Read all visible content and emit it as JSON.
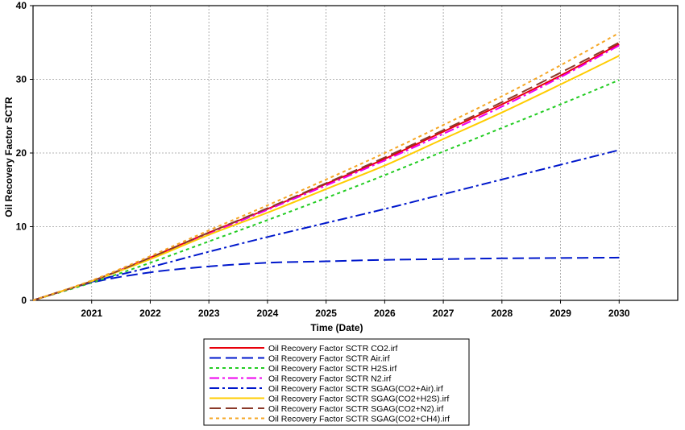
{
  "chart_data": {
    "type": "line",
    "title": "",
    "xlabel": "Time (Date)",
    "ylabel": "Oil Recovery Factor SCTR",
    "xlim": [
      2020,
      2031
    ],
    "ylim": [
      0,
      40
    ],
    "x_ticks": [
      "2021",
      "2022",
      "2023",
      "2024",
      "2025",
      "2026",
      "2027",
      "2028",
      "2029",
      "2030"
    ],
    "y_ticks": [
      "0",
      "10",
      "20",
      "30",
      "40"
    ],
    "grid": true,
    "legend_position": "bottom-center",
    "x": [
      2020.0,
      2021.0,
      2022.0,
      2023.0,
      2024.0,
      2025.0,
      2026.0,
      2027.0,
      2028.0,
      2029.0,
      2030.0
    ],
    "series": [
      {
        "name": "Oil Recovery Factor SCTR CO2.irf",
        "color": "#e8000b",
        "dash": "solid",
        "values": [
          0,
          2.6,
          5.8,
          9.2,
          12.4,
          15.8,
          19.2,
          22.9,
          26.6,
          30.5,
          34.8
        ]
      },
      {
        "name": "Oil Recovery Factor SCTR Air.irf",
        "color": "#0018cc",
        "dash": "long-dash",
        "values": [
          0,
          2.4,
          3.8,
          4.6,
          5.1,
          5.3,
          5.5,
          5.6,
          5.7,
          5.75,
          5.8
        ]
      },
      {
        "name": "Oil Recovery Factor SCTR H2S.irf",
        "color": "#22cc22",
        "dash": "dot",
        "values": [
          0,
          2.4,
          5.1,
          8.0,
          10.9,
          13.9,
          17.0,
          20.2,
          23.4,
          26.6,
          29.9
        ]
      },
      {
        "name": "Oil Recovery Factor SCTR N2.irf",
        "color": "#ee00ee",
        "dash": "dash-dot",
        "values": [
          0,
          2.6,
          5.7,
          9.0,
          12.3,
          15.6,
          19.0,
          22.6,
          26.3,
          30.3,
          34.6
        ]
      },
      {
        "name": "Oil Recovery Factor SCTR SGAG(CO2+Air).irf",
        "color": "#0018cc",
        "dash": "dash-dot",
        "values": [
          0,
          2.5,
          4.5,
          6.6,
          8.6,
          10.5,
          12.4,
          14.4,
          16.4,
          18.4,
          20.4
        ]
      },
      {
        "name": "Oil Recovery Factor SCTR SGAG(CO2+H2S).irf",
        "color": "#ffcc00",
        "dash": "solid",
        "values": [
          0,
          2.6,
          5.6,
          8.9,
          11.9,
          15.1,
          18.3,
          21.9,
          25.5,
          29.3,
          33.2
        ]
      },
      {
        "name": "Oil Recovery Factor SCTR SGAG(CO2+N2).irf",
        "color": "#8b3a2a",
        "dash": "long-dash",
        "values": [
          0,
          2.6,
          5.8,
          9.2,
          12.5,
          15.9,
          19.4,
          23.1,
          26.9,
          30.9,
          35.0
        ]
      },
      {
        "name": "Oil Recovery Factor SCTR SGAG(CO2+CH4).irf",
        "color": "#f5a623",
        "dash": "dot",
        "values": [
          0,
          2.7,
          6.0,
          9.5,
          12.9,
          16.4,
          20.0,
          23.8,
          27.7,
          31.9,
          36.3
        ]
      }
    ]
  }
}
